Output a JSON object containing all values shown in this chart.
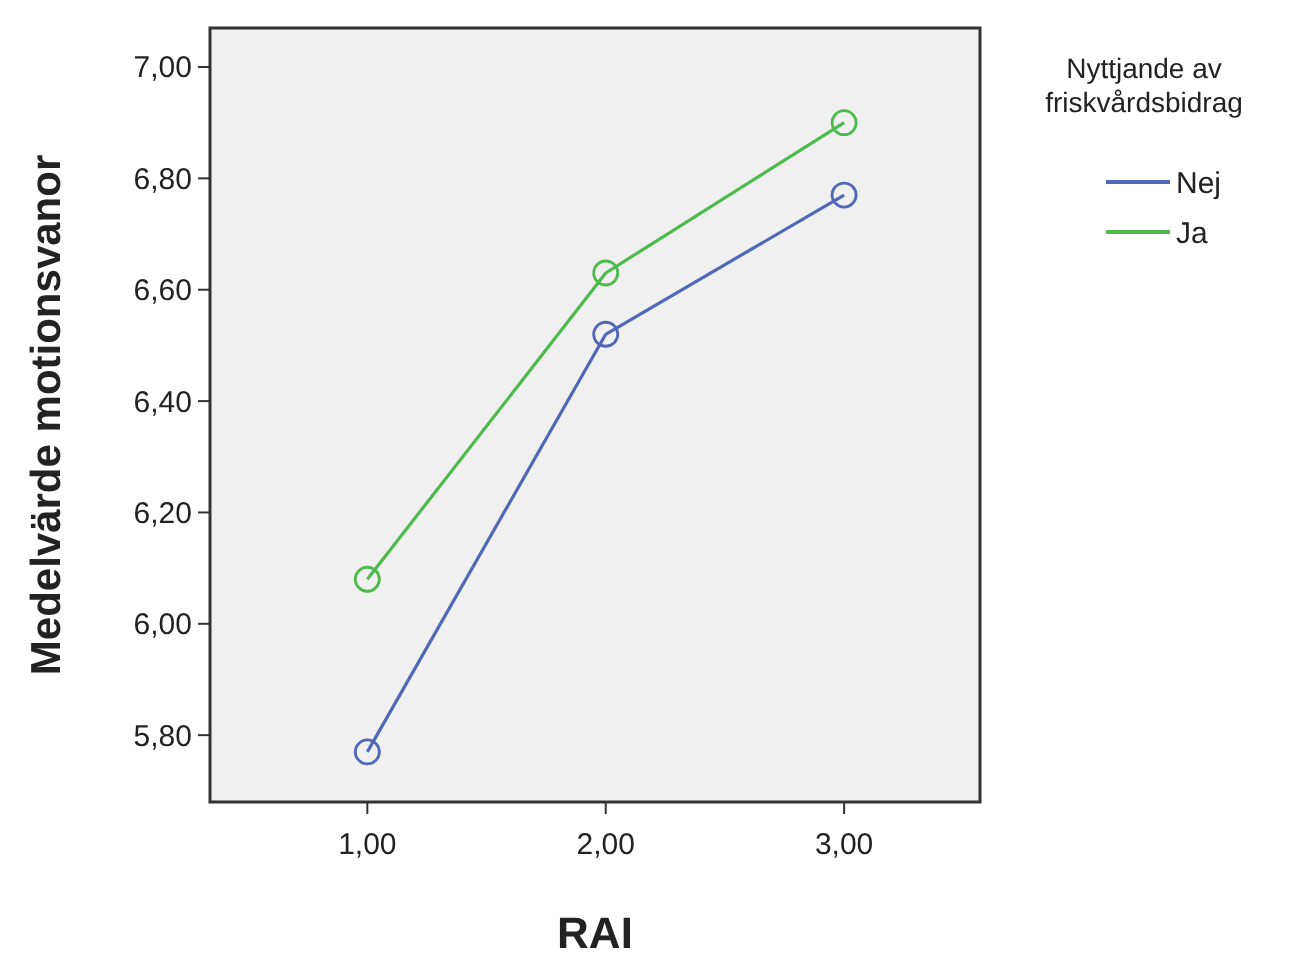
{
  "chart_data": {
    "type": "line",
    "xlabel": "RAI",
    "ylabel": "Medelvärde motionsvanor",
    "legend_title": "Nyttjande av friskvårdsbidrag",
    "legend": "right",
    "marker": "circle",
    "grid": false,
    "x": [
      1,
      2,
      3
    ],
    "xlim": [
      0.34,
      3.57
    ],
    "xticks": [
      {
        "value": 1,
        "label": "1,00"
      },
      {
        "value": 2,
        "label": "2,00"
      },
      {
        "value": 3,
        "label": "3,00"
      }
    ],
    "ylim": [
      5.68,
      7.07
    ],
    "yticks": [
      {
        "value": 5.8,
        "label": "5,80"
      },
      {
        "value": 6,
        "label": "6,00"
      },
      {
        "value": 6.2,
        "label": "6,20"
      },
      {
        "value": 6.4,
        "label": "6,40"
      },
      {
        "value": 6.6,
        "label": "6,60"
      },
      {
        "value": 6.8,
        "label": "6,80"
      },
      {
        "value": 7,
        "label": "7,00"
      }
    ],
    "series": [
      {
        "name": "Nej",
        "color": "#5068b8",
        "values": [
          5.77,
          6.52,
          6.77
        ]
      },
      {
        "name": "Ja",
        "color": "#4cba4c",
        "values": [
          6.08,
          6.63,
          6.9
        ]
      }
    ]
  }
}
